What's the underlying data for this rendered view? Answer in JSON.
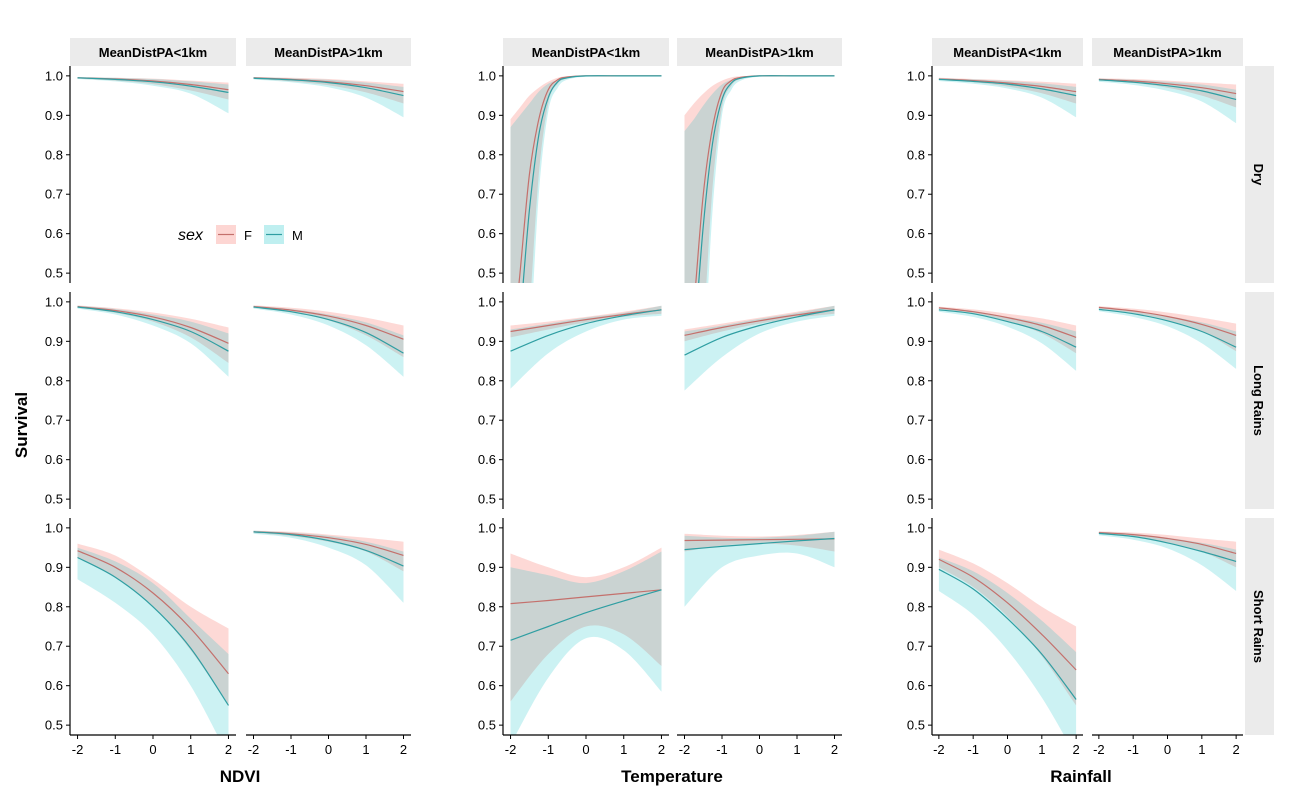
{
  "chart_data": {
    "type": "line",
    "ylabel": "Survival",
    "ylim": [
      0.475,
      1.025
    ],
    "xlim": [
      -2.2,
      2.2
    ],
    "y_ticks": [
      "0.5",
      "0.6",
      "0.7",
      "0.8",
      "0.9",
      "1.0"
    ],
    "x_ticks": [
      "-2",
      "-1",
      "0",
      "1",
      "2"
    ],
    "groups": [
      "NDVI",
      "Temperature",
      "Rainfall"
    ],
    "facet_cols": [
      "MeanDistPA<1km",
      "MeanDistPA>1km"
    ],
    "facet_rows": [
      "Dry",
      "Long Rains",
      "Short Rains"
    ],
    "legend": {
      "title": "sex",
      "entries": [
        "F",
        "M"
      ],
      "placement": "inside top-left panel"
    },
    "colors": {
      "F_line": "#c4706c",
      "M_line": "#2f9ea2",
      "F_ribbon": "#F8766D",
      "M_ribbon": "#00BFC4"
    },
    "grid": false,
    "panels": [
      {
        "group": 0,
        "col": 0,
        "row": 0,
        "x": [
          -2,
          -1,
          0,
          1,
          2
        ],
        "F": {
          "fit": [
            0.995,
            0.992,
            0.987,
            0.978,
            0.965
          ],
          "lo": [
            0.993,
            0.988,
            0.979,
            0.963,
            0.94
          ],
          "hi": [
            0.997,
            0.995,
            0.993,
            0.988,
            0.983
          ]
        },
        "M": {
          "fit": [
            0.995,
            0.991,
            0.985,
            0.974,
            0.958
          ],
          "lo": [
            0.992,
            0.986,
            0.975,
            0.955,
            0.905
          ],
          "hi": [
            0.997,
            0.995,
            0.992,
            0.986,
            0.978
          ]
        }
      },
      {
        "group": 0,
        "col": 1,
        "row": 0,
        "x": [
          -2,
          -1,
          0,
          1,
          2
        ],
        "F": {
          "fit": [
            0.995,
            0.991,
            0.985,
            0.975,
            0.96
          ],
          "lo": [
            0.992,
            0.986,
            0.976,
            0.958,
            0.93
          ],
          "hi": [
            0.997,
            0.995,
            0.992,
            0.986,
            0.98
          ]
        },
        "M": {
          "fit": [
            0.994,
            0.99,
            0.983,
            0.97,
            0.95
          ],
          "lo": [
            0.991,
            0.984,
            0.971,
            0.945,
            0.895
          ],
          "hi": [
            0.997,
            0.994,
            0.99,
            0.983,
            0.972
          ]
        }
      },
      {
        "group": 0,
        "col": 0,
        "row": 1,
        "x": [
          -2,
          -1,
          0,
          1,
          2
        ],
        "F": {
          "fit": [
            0.988,
            0.978,
            0.962,
            0.935,
            0.895
          ],
          "lo": [
            0.985,
            0.972,
            0.95,
            0.91,
            0.845
          ],
          "hi": [
            0.991,
            0.984,
            0.973,
            0.957,
            0.935
          ]
        },
        "M": {
          "fit": [
            0.987,
            0.975,
            0.955,
            0.925,
            0.875
          ],
          "lo": [
            0.983,
            0.968,
            0.94,
            0.895,
            0.81
          ],
          "hi": [
            0.99,
            0.982,
            0.968,
            0.95,
            0.92
          ]
        }
      },
      {
        "group": 0,
        "col": 1,
        "row": 1,
        "x": [
          -2,
          -1,
          0,
          1,
          2
        ],
        "F": {
          "fit": [
            0.988,
            0.979,
            0.964,
            0.94,
            0.905
          ],
          "lo": [
            0.985,
            0.973,
            0.953,
            0.915,
            0.86
          ],
          "hi": [
            0.991,
            0.985,
            0.975,
            0.96,
            0.94
          ]
        },
        "M": {
          "fit": [
            0.987,
            0.975,
            0.955,
            0.922,
            0.87
          ],
          "lo": [
            0.983,
            0.968,
            0.94,
            0.89,
            0.81
          ],
          "hi": [
            0.99,
            0.982,
            0.968,
            0.948,
            0.915
          ]
        }
      },
      {
        "group": 0,
        "col": 0,
        "row": 2,
        "x": [
          -2,
          -1,
          0,
          1,
          2
        ],
        "F": {
          "fit": [
            0.942,
            0.9,
            0.835,
            0.745,
            0.63
          ],
          "lo": [
            0.925,
            0.875,
            0.8,
            0.69,
            0.55
          ],
          "hi": [
            0.96,
            0.93,
            0.87,
            0.8,
            0.745
          ]
        },
        "M": {
          "fit": [
            0.925,
            0.875,
            0.8,
            0.695,
            0.55
          ],
          "lo": [
            0.87,
            0.81,
            0.73,
            0.6,
            0.42
          ],
          "hi": [
            0.95,
            0.915,
            0.86,
            0.77,
            0.68
          ]
        }
      },
      {
        "group": 0,
        "col": 1,
        "row": 2,
        "x": [
          -2,
          -1,
          0,
          1,
          2
        ],
        "F": {
          "fit": [
            0.99,
            0.985,
            0.975,
            0.958,
            0.93
          ],
          "lo": [
            0.987,
            0.979,
            0.965,
            0.94,
            0.89
          ],
          "hi": [
            0.993,
            0.99,
            0.983,
            0.975,
            0.965
          ]
        },
        "M": {
          "fit": [
            0.99,
            0.983,
            0.968,
            0.943,
            0.903
          ],
          "lo": [
            0.985,
            0.975,
            0.95,
            0.905,
            0.81
          ],
          "hi": [
            0.993,
            0.988,
            0.98,
            0.965,
            0.94
          ]
        }
      },
      {
        "group": 1,
        "col": 0,
        "row": 0,
        "x": [
          -2,
          -1.75,
          -1.5,
          -1.25,
          -1,
          -0.75,
          -0.5,
          0,
          1,
          2
        ],
        "F": {
          "fit": [
            0.25,
            0.5,
            0.75,
            0.89,
            0.965,
            0.99,
            0.997,
            1,
            1,
            1
          ],
          "lo": [
            0,
            0.1,
            0.4,
            0.75,
            0.93,
            0.98,
            0.993,
            0.999,
            1,
            1
          ],
          "hi": [
            0.89,
            0.92,
            0.95,
            0.97,
            0.985,
            0.995,
            0.999,
            1,
            1,
            1
          ]
        },
        "M": {
          "fit": [
            0.15,
            0.38,
            0.66,
            0.85,
            0.945,
            0.985,
            0.995,
            1,
            1,
            1
          ],
          "lo": [
            0,
            0,
            0.3,
            0.7,
            0.91,
            0.97,
            0.99,
            0.998,
            1,
            1
          ],
          "hi": [
            0.87,
            0.9,
            0.93,
            0.96,
            0.98,
            0.99,
            0.998,
            1,
            1,
            1
          ]
        }
      },
      {
        "group": 1,
        "col": 1,
        "row": 0,
        "x": [
          -2,
          -1.75,
          -1.5,
          -1.25,
          -1,
          -0.75,
          -0.5,
          0,
          1,
          2
        ],
        "F": {
          "fit": [
            0.2,
            0.42,
            0.7,
            0.87,
            0.96,
            0.988,
            0.996,
            1,
            1,
            1
          ],
          "lo": [
            0,
            0.05,
            0.35,
            0.72,
            0.92,
            0.975,
            0.992,
            0.999,
            1,
            1
          ],
          "hi": [
            0.9,
            0.93,
            0.955,
            0.975,
            0.988,
            0.996,
            0.999,
            1,
            1,
            1
          ]
        },
        "M": {
          "fit": [
            0.1,
            0.32,
            0.62,
            0.83,
            0.94,
            0.982,
            0.994,
            1,
            1,
            1
          ],
          "lo": [
            0,
            0,
            0.25,
            0.66,
            0.9,
            0.965,
            0.988,
            0.998,
            1,
            1
          ],
          "hi": [
            0.86,
            0.89,
            0.925,
            0.955,
            0.978,
            0.99,
            0.997,
            1,
            1,
            1
          ]
        }
      },
      {
        "group": 1,
        "col": 0,
        "row": 1,
        "x": [
          -2,
          -1,
          0,
          1,
          2
        ],
        "F": {
          "fit": [
            0.925,
            0.94,
            0.955,
            0.968,
            0.98
          ],
          "lo": [
            0.91,
            0.93,
            0.948,
            0.962,
            0.97
          ],
          "hi": [
            0.94,
            0.95,
            0.962,
            0.975,
            0.99
          ]
        },
        "M": {
          "fit": [
            0.875,
            0.915,
            0.945,
            0.965,
            0.98
          ],
          "lo": [
            0.78,
            0.87,
            0.925,
            0.955,
            0.965
          ],
          "hi": [
            0.93,
            0.945,
            0.96,
            0.972,
            0.99
          ]
        }
      },
      {
        "group": 1,
        "col": 1,
        "row": 1,
        "x": [
          -2,
          -1,
          0,
          1,
          2
        ],
        "F": {
          "fit": [
            0.915,
            0.935,
            0.952,
            0.967,
            0.98
          ],
          "lo": [
            0.9,
            0.925,
            0.945,
            0.96,
            0.97
          ],
          "hi": [
            0.93,
            0.945,
            0.96,
            0.975,
            0.99
          ]
        },
        "M": {
          "fit": [
            0.865,
            0.91,
            0.94,
            0.962,
            0.98
          ],
          "lo": [
            0.775,
            0.86,
            0.92,
            0.95,
            0.965
          ],
          "hi": [
            0.925,
            0.94,
            0.957,
            0.972,
            0.99
          ]
        }
      },
      {
        "group": 1,
        "col": 0,
        "row": 2,
        "x": [
          -2,
          -1,
          0,
          1,
          2
        ],
        "F": {
          "fit": [
            0.808,
            0.816,
            0.825,
            0.834,
            0.843
          ],
          "lo": [
            0.56,
            0.68,
            0.75,
            0.73,
            0.65
          ],
          "hi": [
            0.935,
            0.9,
            0.875,
            0.9,
            0.95
          ]
        },
        "M": {
          "fit": [
            0.715,
            0.75,
            0.785,
            0.815,
            0.843
          ],
          "lo": [
            0.45,
            0.62,
            0.72,
            0.69,
            0.585
          ],
          "hi": [
            0.9,
            0.88,
            0.86,
            0.89,
            0.94
          ]
        }
      },
      {
        "group": 1,
        "col": 1,
        "row": 2,
        "x": [
          -2,
          -1,
          0,
          1,
          2
        ],
        "F": {
          "fit": [
            0.968,
            0.969,
            0.97,
            0.971,
            0.972
          ],
          "lo": [
            0.94,
            0.955,
            0.96,
            0.955,
            0.94
          ],
          "hi": [
            0.985,
            0.98,
            0.978,
            0.982,
            0.99
          ]
        },
        "M": {
          "fit": [
            0.945,
            0.953,
            0.96,
            0.967,
            0.973
          ],
          "lo": [
            0.8,
            0.9,
            0.93,
            0.935,
            0.9
          ],
          "hi": [
            0.98,
            0.975,
            0.975,
            0.98,
            0.99
          ]
        }
      },
      {
        "group": 2,
        "col": 0,
        "row": 0,
        "x": [
          -2,
          -1,
          0,
          1,
          2
        ],
        "F": {
          "fit": [
            0.992,
            0.988,
            0.982,
            0.973,
            0.96
          ],
          "lo": [
            0.99,
            0.984,
            0.973,
            0.956,
            0.93
          ],
          "hi": [
            0.995,
            0.992,
            0.989,
            0.985,
            0.98
          ]
        },
        "M": {
          "fit": [
            0.991,
            0.986,
            0.979,
            0.967,
            0.95
          ],
          "lo": [
            0.987,
            0.98,
            0.968,
            0.945,
            0.895
          ],
          "hi": [
            0.994,
            0.991,
            0.987,
            0.981,
            0.972
          ]
        }
      },
      {
        "group": 2,
        "col": 1,
        "row": 0,
        "x": [
          -2,
          -1,
          0,
          1,
          2
        ],
        "F": {
          "fit": [
            0.991,
            0.987,
            0.98,
            0.97,
            0.955
          ],
          "lo": [
            0.988,
            0.982,
            0.97,
            0.95,
            0.92
          ],
          "hi": [
            0.994,
            0.992,
            0.988,
            0.983,
            0.978
          ]
        },
        "M": {
          "fit": [
            0.99,
            0.984,
            0.975,
            0.962,
            0.94
          ],
          "lo": [
            0.985,
            0.977,
            0.962,
            0.935,
            0.88
          ],
          "hi": [
            0.993,
            0.99,
            0.985,
            0.978,
            0.965
          ]
        }
      },
      {
        "group": 2,
        "col": 0,
        "row": 1,
        "x": [
          -2,
          -1,
          0,
          1,
          2
        ],
        "F": {
          "fit": [
            0.985,
            0.975,
            0.96,
            0.94,
            0.91
          ],
          "lo": [
            0.982,
            0.969,
            0.95,
            0.92,
            0.87
          ],
          "hi": [
            0.988,
            0.981,
            0.97,
            0.958,
            0.94
          ]
        },
        "M": {
          "fit": [
            0.98,
            0.97,
            0.95,
            0.925,
            0.885
          ],
          "lo": [
            0.975,
            0.962,
            0.937,
            0.895,
            0.825
          ],
          "hi": [
            0.985,
            0.977,
            0.962,
            0.947,
            0.925
          ]
        }
      },
      {
        "group": 2,
        "col": 1,
        "row": 1,
        "x": [
          -2,
          -1,
          0,
          1,
          2
        ],
        "F": {
          "fit": [
            0.986,
            0.977,
            0.963,
            0.943,
            0.915
          ],
          "lo": [
            0.983,
            0.971,
            0.953,
            0.925,
            0.875
          ],
          "hi": [
            0.989,
            0.983,
            0.973,
            0.96,
            0.945
          ]
        },
        "M": {
          "fit": [
            0.981,
            0.97,
            0.952,
            0.925,
            0.885
          ],
          "lo": [
            0.976,
            0.962,
            0.938,
            0.895,
            0.83
          ],
          "hi": [
            0.986,
            0.978,
            0.964,
            0.948,
            0.925
          ]
        }
      },
      {
        "group": 2,
        "col": 0,
        "row": 2,
        "x": [
          -2,
          -1,
          0,
          1,
          2
        ],
        "F": {
          "fit": [
            0.92,
            0.875,
            0.81,
            0.73,
            0.64
          ],
          "lo": [
            0.9,
            0.85,
            0.775,
            0.675,
            0.55
          ],
          "hi": [
            0.945,
            0.91,
            0.86,
            0.8,
            0.75
          ]
        },
        "M": {
          "fit": [
            0.895,
            0.845,
            0.77,
            0.68,
            0.565
          ],
          "lo": [
            0.84,
            0.78,
            0.69,
            0.57,
            0.42
          ],
          "hi": [
            0.925,
            0.89,
            0.835,
            0.765,
            0.685
          ]
        }
      },
      {
        "group": 2,
        "col": 1,
        "row": 2,
        "x": [
          -2,
          -1,
          0,
          1,
          2
        ],
        "F": {
          "fit": [
            0.988,
            0.983,
            0.973,
            0.958,
            0.935
          ],
          "lo": [
            0.985,
            0.977,
            0.963,
            0.94,
            0.9
          ],
          "hi": [
            0.991,
            0.988,
            0.982,
            0.973,
            0.965
          ]
        },
        "M": {
          "fit": [
            0.986,
            0.978,
            0.962,
            0.94,
            0.915
          ],
          "lo": [
            0.981,
            0.97,
            0.948,
            0.905,
            0.84
          ],
          "hi": [
            0.99,
            0.985,
            0.975,
            0.962,
            0.945
          ]
        }
      }
    ]
  }
}
